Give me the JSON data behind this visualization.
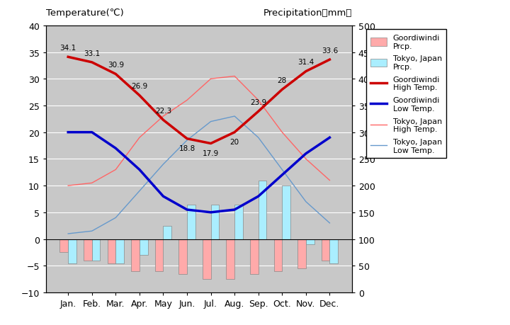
{
  "months": [
    "Jan.",
    "Feb.",
    "Mar.",
    "Apr.",
    "May",
    "Jun.",
    "Jul.",
    "Aug.",
    "Sep.",
    "Oct.",
    "Nov.",
    "Dec."
  ],
  "goordiwindi_high": [
    34.1,
    33.1,
    30.9,
    26.9,
    22.3,
    18.8,
    17.9,
    20,
    23.9,
    28,
    31.4,
    33.6
  ],
  "goordiwindi_low": [
    20,
    20,
    17,
    13,
    8,
    5.5,
    5,
    5.5,
    8,
    12,
    16,
    19
  ],
  "tokyo_high": [
    10,
    10.5,
    13,
    19,
    23,
    26,
    30,
    30.5,
    26,
    20,
    15,
    11
  ],
  "tokyo_low": [
    1,
    1.5,
    4,
    9,
    14,
    18.5,
    22,
    23,
    19,
    13,
    7,
    3
  ],
  "goordiwindi_prcp_bars": [
    -2.5,
    -4.0,
    -4.5,
    -6.0,
    -6.0,
    -6.5,
    -7.5,
    -7.5,
    -6.5,
    -6.0,
    -5.5,
    -4.0
  ],
  "tokyo_prcp_bars": [
    -4.5,
    -4.0,
    -4.5,
    -3.0,
    2.5,
    6.5,
    6.5,
    6.5,
    11.0,
    10.0,
    -1.0,
    -4.5
  ],
  "title_left": "Temperature(℃)",
  "title_right": "Precipitation（mm）",
  "ylim_temp": [
    -10,
    40
  ],
  "ylim_prcp": [
    0,
    500
  ],
  "bg_color": "#c8c8c8",
  "goordiwindi_high_color": "#cc0000",
  "goordiwindi_low_color": "#0000cc",
  "tokyo_high_color": "#ff6666",
  "tokyo_low_color": "#6699cc",
  "goordiwindi_prcp_color": "#ffaaaa",
  "tokyo_prcp_color": "#aaeeff",
  "ann_labels": [
    "34.1",
    "33.1",
    "30.9",
    "26.9",
    "22.3",
    "18.8",
    "17.9",
    "20",
    "23.9",
    "28",
    "31.4",
    "33.6"
  ],
  "ann_offsets_y": [
    6,
    6,
    6,
    6,
    6,
    -13,
    -13,
    -13,
    6,
    6,
    6,
    6
  ]
}
